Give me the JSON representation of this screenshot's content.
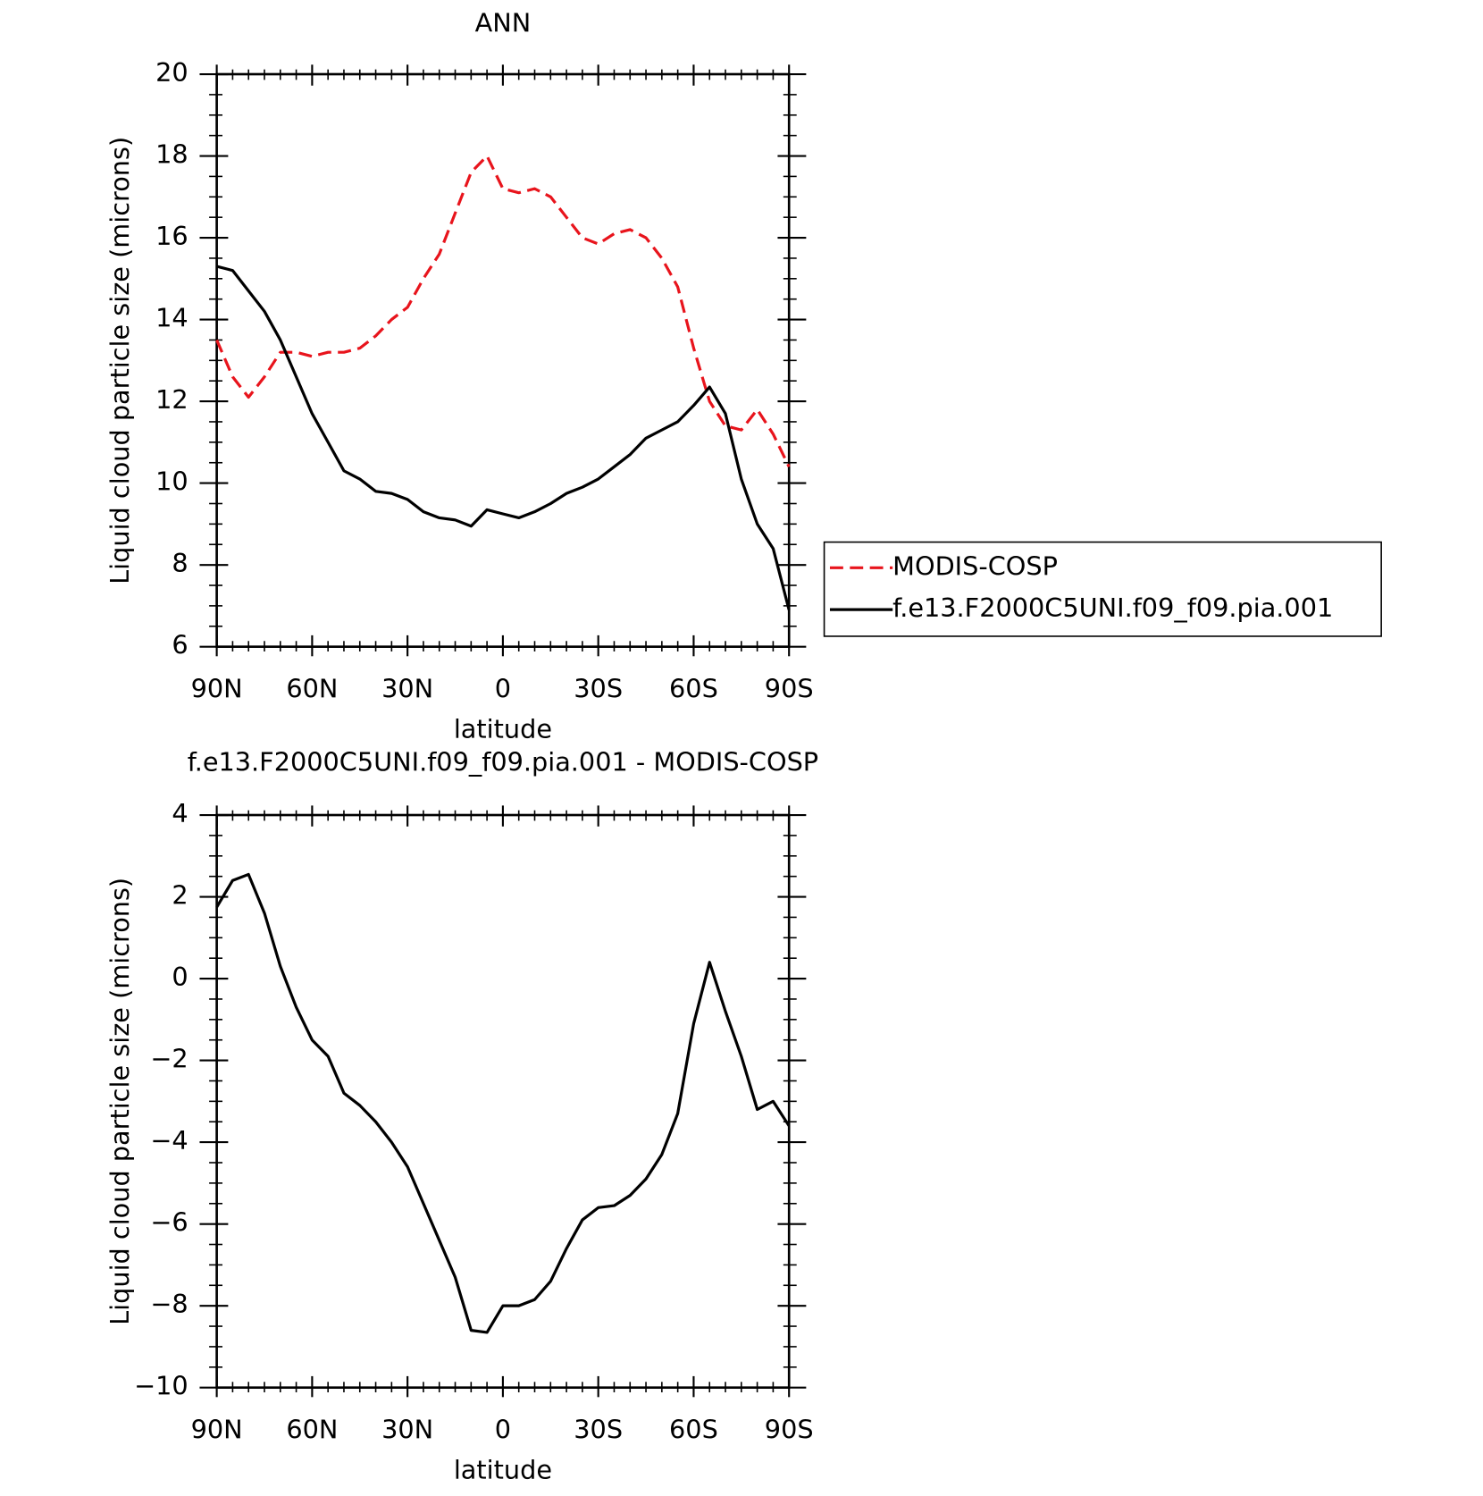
{
  "chart_data": [
    {
      "type": "line",
      "title": "ANN",
      "xlabel": "latitude",
      "ylabel": "Liquid cloud particle size (microns)",
      "x": [
        90,
        85,
        80,
        75,
        70,
        65,
        60,
        55,
        50,
        45,
        40,
        35,
        30,
        25,
        20,
        15,
        10,
        5,
        0,
        -5,
        -10,
        -15,
        -20,
        -25,
        -30,
        -35,
        -40,
        -45,
        -50,
        -55,
        -60,
        -65,
        -70,
        -75,
        -80,
        -85,
        -90
      ],
      "xlim": [
        90,
        -90
      ],
      "xticks": [
        {
          "value": 90,
          "label": "90N"
        },
        {
          "value": 60,
          "label": "60N"
        },
        {
          "value": 30,
          "label": "30N"
        },
        0,
        {
          "value": -30,
          "label": "30S"
        },
        {
          "value": -60,
          "label": "60S"
        },
        {
          "value": -90,
          "label": "90S"
        }
      ],
      "ylim": [
        6,
        20
      ],
      "yticks": [
        6,
        8,
        10,
        12,
        14,
        16,
        18,
        20
      ],
      "legend": "right",
      "series": [
        {
          "name": "MODIS-COSP",
          "color": "#e8141c",
          "dash": true,
          "values": [
            13.5,
            12.6,
            12.1,
            12.6,
            13.2,
            13.2,
            13.1,
            13.2,
            13.2,
            13.3,
            13.6,
            14.0,
            14.3,
            15.0,
            15.6,
            16.6,
            17.6,
            18.0,
            17.2,
            17.1,
            17.2,
            17.0,
            16.5,
            16.0,
            15.85,
            16.1,
            16.2,
            16.0,
            15.5,
            14.8,
            13.3,
            12.0,
            11.4,
            11.3,
            11.8,
            11.2,
            10.4
          ]
        },
        {
          "name": "f.e13.F2000C5UNI.f09_f09.pia.001",
          "color": "#000000",
          "dash": false,
          "values": [
            15.3,
            15.2,
            14.7,
            14.2,
            13.5,
            12.6,
            11.7,
            11.0,
            10.3,
            10.1,
            9.8,
            9.75,
            9.6,
            9.3,
            9.15,
            9.1,
            8.95,
            9.35,
            9.25,
            9.15,
            9.3,
            9.5,
            9.75,
            9.9,
            10.1,
            10.4,
            10.7,
            11.1,
            11.3,
            11.5,
            11.9,
            12.35,
            11.7,
            10.1,
            9.0,
            8.4,
            6.9
          ]
        }
      ]
    },
    {
      "type": "line",
      "title": "f.e13.F2000C5UNI.f09_f09.pia.001 - MODIS-COSP",
      "xlabel": "latitude",
      "ylabel": "Liquid cloud particle size (microns)",
      "x": [
        90,
        85,
        80,
        75,
        70,
        65,
        60,
        55,
        50,
        45,
        40,
        35,
        30,
        25,
        20,
        15,
        10,
        5,
        0,
        -5,
        -10,
        -15,
        -20,
        -25,
        -30,
        -35,
        -40,
        -45,
        -50,
        -55,
        -60,
        -65,
        -70,
        -75,
        -80,
        -85,
        -90
      ],
      "xlim": [
        90,
        -90
      ],
      "xticks": [
        {
          "value": 90,
          "label": "90N"
        },
        {
          "value": 60,
          "label": "60N"
        },
        {
          "value": 30,
          "label": "30N"
        },
        0,
        {
          "value": -30,
          "label": "30S"
        },
        {
          "value": -60,
          "label": "60S"
        },
        {
          "value": -90,
          "label": "90S"
        }
      ],
      "ylim": [
        -10,
        4
      ],
      "yticks": [
        {
          "value": -10,
          "label": "−10"
        },
        {
          "value": -8,
          "label": "−8"
        },
        {
          "value": -6,
          "label": "−6"
        },
        {
          "value": -4,
          "label": "−4"
        },
        {
          "value": -2,
          "label": "−2"
        },
        0,
        2,
        4
      ],
      "series": [
        {
          "color": "#000000",
          "dash": false,
          "values": [
            1.75,
            2.4,
            2.55,
            1.6,
            0.3,
            -0.7,
            -1.5,
            -1.9,
            -2.8,
            -3.1,
            -3.5,
            -4.0,
            -4.6,
            -5.5,
            -6.4,
            -7.3,
            -8.6,
            -8.65,
            -8.0,
            -8.0,
            -7.85,
            -7.4,
            -6.6,
            -5.9,
            -5.6,
            -5.55,
            -5.3,
            -4.9,
            -4.3,
            -3.3,
            -1.1,
            0.4,
            -0.8,
            -1.9,
            -3.2,
            -3.0,
            -3.6
          ]
        }
      ]
    }
  ]
}
